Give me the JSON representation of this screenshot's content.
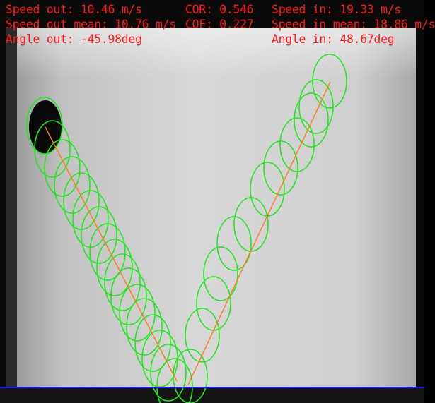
{
  "overlay": {
    "speed_out": "Speed out: 10.46 m/s",
    "speed_out_mean": "Speed out mean: 10.76 m/s",
    "angle_out": "Angle out: -45.98deg",
    "cor": "COR: 0.546",
    "cof": "COF: 0.227",
    "speed_in": "Speed in: 19.33 m/s",
    "speed_in_mean": "Speed in mean: 18.86 m/s",
    "angle_in": "Angle in: 48.67deg"
  },
  "colors": {
    "overlay_text": "#ff1a1a",
    "detection_circle": "#22e622",
    "trajectory": "#ff7a1a",
    "ground_line": "#1a1aff",
    "ball": "#0a0a0a"
  }
}
